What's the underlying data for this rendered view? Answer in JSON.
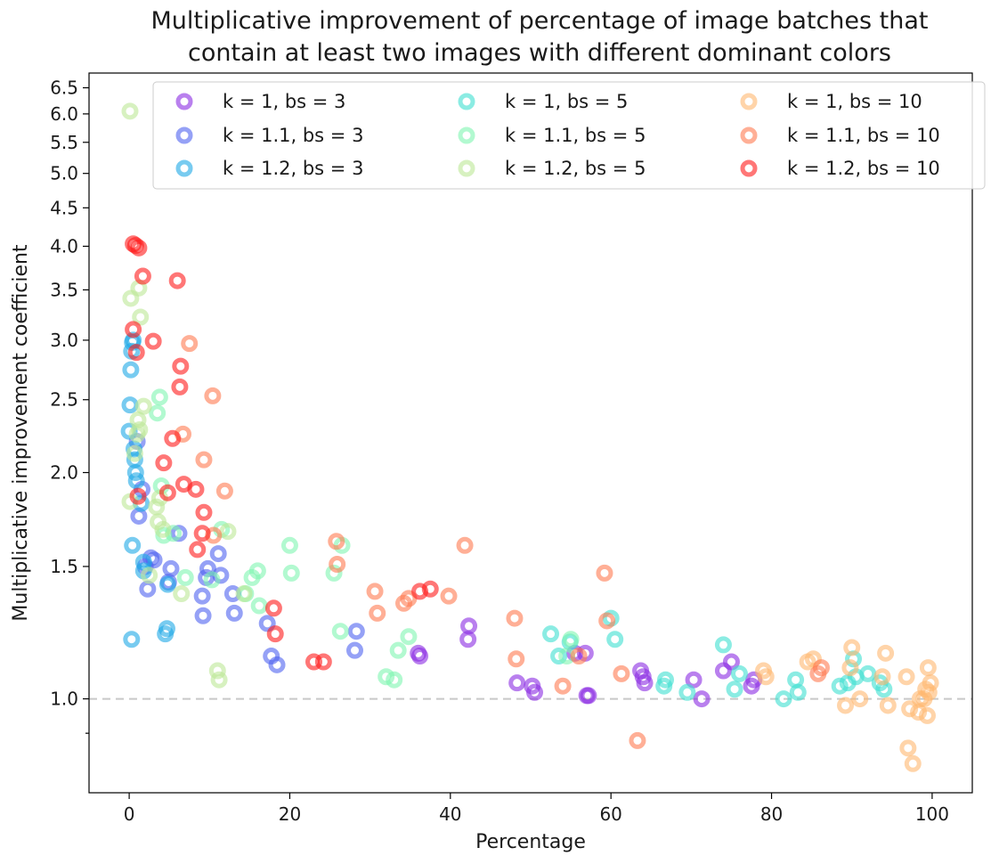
{
  "chart_data": {
    "type": "scatter",
    "title": "Multiplicative improvement of percentage of image batches that contain at least two images with different dominant colors",
    "title_lines": [
      "Multiplicative improvement of percentage of image batches that",
      "contain at least two images with different dominant colors"
    ],
    "xlabel": "Percentage",
    "ylabel": "Multiplicative improvement coefficient",
    "xlim": [
      -5,
      105
    ],
    "ylim": [
      0.75,
      6.8
    ],
    "yscale": "log",
    "x_ticks": [
      0,
      20,
      40,
      60,
      80,
      100
    ],
    "y_ticks": [
      1.0,
      1.5,
      2.0,
      2.5,
      3.0,
      3.5,
      4.0,
      4.5,
      5.0,
      5.5,
      6.0,
      6.5
    ],
    "y_minor_ticks": [
      0.9
    ],
    "reference_line": {
      "y": 1.0,
      "style": "dashed",
      "color": "#c8c8c8"
    },
    "grid": false,
    "legend": {
      "placement": "top",
      "columns": 3
    },
    "series": [
      {
        "name": "k = 1, bs = 3",
        "color": "#8a2be2",
        "points": [
          [
            42.3,
            1.25
          ],
          [
            42.2,
            1.2
          ],
          [
            48.3,
            1.05
          ],
          [
            50.2,
            1.04
          ],
          [
            50.5,
            1.02
          ],
          [
            55.5,
            1.15
          ],
          [
            56.8,
            1.15
          ],
          [
            57.0,
            1.01
          ],
          [
            57.2,
            1.01
          ],
          [
            63.7,
            1.09
          ],
          [
            64.0,
            1.07
          ],
          [
            64.2,
            1.05
          ],
          [
            70.3,
            1.06
          ],
          [
            71.3,
            1.0
          ],
          [
            74.0,
            1.09
          ],
          [
            75.0,
            1.12
          ],
          [
            77.5,
            1.04
          ],
          [
            77.8,
            1.06
          ],
          [
            36.2,
            1.14
          ],
          [
            36.0,
            1.15
          ]
        ]
      },
      {
        "name": "k = 1.1, bs = 3",
        "color": "#4f63f0",
        "points": [
          [
            1.0,
            2.2
          ],
          [
            1.2,
            1.75
          ],
          [
            1.6,
            1.9
          ],
          [
            2.0,
            1.5
          ],
          [
            2.3,
            1.4
          ],
          [
            2.7,
            1.54
          ],
          [
            3.1,
            1.53
          ],
          [
            4.9,
            1.43
          ],
          [
            5.2,
            1.49
          ],
          [
            6.2,
            1.66
          ],
          [
            9.1,
            1.37
          ],
          [
            9.2,
            1.29
          ],
          [
            9.6,
            1.45
          ],
          [
            9.8,
            1.49
          ],
          [
            11.1,
            1.56
          ],
          [
            11.4,
            1.46
          ],
          [
            12.9,
            1.38
          ],
          [
            13.1,
            1.3
          ],
          [
            17.2,
            1.26
          ],
          [
            17.7,
            1.14
          ],
          [
            18.4,
            1.11
          ],
          [
            28.1,
            1.16
          ],
          [
            28.3,
            1.23
          ]
        ]
      },
      {
        "name": "k = 1.2, bs = 3",
        "color": "#1ea8e6",
        "points": [
          [
            0.0,
            2.27
          ],
          [
            0.1,
            2.46
          ],
          [
            0.2,
            2.74
          ],
          [
            0.3,
            2.9
          ],
          [
            0.4,
            2.98
          ],
          [
            0.5,
            3.0
          ],
          [
            0.6,
            2.15
          ],
          [
            0.7,
            2.08
          ],
          [
            0.8,
            2.0
          ],
          [
            0.9,
            1.95
          ],
          [
            0.4,
            1.6
          ],
          [
            0.3,
            1.2
          ],
          [
            1.8,
            1.48
          ],
          [
            4.5,
            1.22
          ],
          [
            4.8,
            1.42
          ],
          [
            4.7,
            1.24
          ],
          [
            1.5,
            1.82
          ],
          [
            1.8,
            1.52
          ]
        ]
      },
      {
        "name": "k = 1, bs = 5",
        "color": "#3de0d0",
        "points": [
          [
            52.5,
            1.22
          ],
          [
            53.5,
            1.14
          ],
          [
            54.9,
            1.19
          ],
          [
            60.0,
            1.28
          ],
          [
            60.5,
            1.2
          ],
          [
            66.6,
            1.04
          ],
          [
            66.8,
            1.06
          ],
          [
            69.5,
            1.02
          ],
          [
            74.0,
            1.18
          ],
          [
            75.4,
            1.03
          ],
          [
            76.0,
            1.08
          ],
          [
            81.5,
            1.0
          ],
          [
            83.0,
            1.06
          ],
          [
            83.3,
            1.02
          ],
          [
            88.5,
            1.04
          ],
          [
            89.5,
            1.05
          ],
          [
            90.2,
            1.13
          ],
          [
            90.5,
            1.07
          ],
          [
            92.0,
            1.08
          ],
          [
            93.5,
            1.05
          ],
          [
            94.0,
            1.03
          ]
        ]
      },
      {
        "name": "k = 1.1, bs = 5",
        "color": "#7ff5b0",
        "points": [
          [
            3.8,
            2.52
          ],
          [
            3.5,
            2.4
          ],
          [
            4.0,
            1.92
          ],
          [
            4.3,
            1.65
          ],
          [
            5.5,
            1.66
          ],
          [
            7.0,
            1.45
          ],
          [
            10.3,
            1.44
          ],
          [
            11.5,
            1.68
          ],
          [
            14.5,
            1.38
          ],
          [
            15.3,
            1.45
          ],
          [
            16.0,
            1.48
          ],
          [
            16.2,
            1.33
          ],
          [
            20.0,
            1.6
          ],
          [
            20.2,
            1.47
          ],
          [
            25.5,
            1.47
          ],
          [
            26.3,
            1.23
          ],
          [
            26.5,
            1.6
          ],
          [
            32.0,
            1.07
          ],
          [
            33.0,
            1.06
          ],
          [
            33.5,
            1.16
          ],
          [
            34.8,
            1.21
          ],
          [
            54.5,
            1.14
          ],
          [
            55.0,
            1.2
          ]
        ]
      },
      {
        "name": "k = 1.2, bs = 5",
        "color": "#bde896",
        "points": [
          [
            0.1,
            6.05
          ],
          [
            0.2,
            3.41
          ],
          [
            0.1,
            1.83
          ],
          [
            1.2,
            3.52
          ],
          [
            1.4,
            3.22
          ],
          [
            1.8,
            2.45
          ],
          [
            1.1,
            2.35
          ],
          [
            1.3,
            2.28
          ],
          [
            1.0,
            2.25
          ],
          [
            0.7,
            2.12
          ],
          [
            2.5,
            1.46
          ],
          [
            3.4,
            1.8
          ],
          [
            3.8,
            1.85
          ],
          [
            3.6,
            1.72
          ],
          [
            4.2,
            1.68
          ],
          [
            6.5,
            1.38
          ],
          [
            12.3,
            1.67
          ],
          [
            11.0,
            1.09
          ],
          [
            11.2,
            1.06
          ],
          [
            14.3,
            1.38
          ]
        ]
      },
      {
        "name": "k = 1, bs = 10",
        "color": "#ffb870",
        "points": [
          [
            79.0,
            1.09
          ],
          [
            79.3,
            1.07
          ],
          [
            84.5,
            1.12
          ],
          [
            85.2,
            1.13
          ],
          [
            89.2,
            0.98
          ],
          [
            89.8,
            1.1
          ],
          [
            90.0,
            1.17
          ],
          [
            91.0,
            1.0
          ],
          [
            93.8,
            1.07
          ],
          [
            94.2,
            1.15
          ],
          [
            94.5,
            0.98
          ],
          [
            96.8,
            1.07
          ],
          [
            97.0,
            0.86
          ],
          [
            97.2,
            0.97
          ],
          [
            97.6,
            0.82
          ],
          [
            98.3,
            0.96
          ],
          [
            99.0,
            1.0
          ],
          [
            99.2,
            1.03
          ],
          [
            99.4,
            0.95
          ],
          [
            99.6,
            1.02
          ],
          [
            99.8,
            1.05
          ],
          [
            99.5,
            1.1
          ],
          [
            98.5,
            1.0
          ]
        ]
      },
      {
        "name": "k = 1.1, bs = 10",
        "color": "#ff7a50",
        "points": [
          [
            7.5,
            2.97
          ],
          [
            6.7,
            2.25
          ],
          [
            9.3,
            2.08
          ],
          [
            10.4,
            2.53
          ],
          [
            10.5,
            1.65
          ],
          [
            11.9,
            1.89
          ],
          [
            25.8,
            1.62
          ],
          [
            25.9,
            1.51
          ],
          [
            30.6,
            1.39
          ],
          [
            30.9,
            1.3
          ],
          [
            34.2,
            1.34
          ],
          [
            34.8,
            1.36
          ],
          [
            39.8,
            1.37
          ],
          [
            41.8,
            1.6
          ],
          [
            48.0,
            1.28
          ],
          [
            48.2,
            1.13
          ],
          [
            54.0,
            1.04
          ],
          [
            56.0,
            1.14
          ],
          [
            59.2,
            1.47
          ],
          [
            59.5,
            1.27
          ],
          [
            61.3,
            1.08
          ],
          [
            63.3,
            0.88
          ],
          [
            85.8,
            1.08
          ],
          [
            86.2,
            1.1
          ]
        ]
      },
      {
        "name": "k = 1.2, bs = 10",
        "color": "#ff1a1a",
        "points": [
          [
            0.5,
            4.03
          ],
          [
            0.8,
            4.01
          ],
          [
            1.2,
            3.98
          ],
          [
            1.7,
            3.65
          ],
          [
            6.0,
            3.6
          ],
          [
            0.5,
            3.1
          ],
          [
            0.9,
            2.89
          ],
          [
            3.0,
            2.99
          ],
          [
            6.4,
            2.77
          ],
          [
            6.3,
            2.6
          ],
          [
            5.4,
            2.22
          ],
          [
            4.3,
            2.06
          ],
          [
            4.8,
            1.88
          ],
          [
            1.1,
            1.86
          ],
          [
            6.8,
            1.93
          ],
          [
            8.3,
            1.9
          ],
          [
            9.3,
            1.77
          ],
          [
            8.5,
            1.58
          ],
          [
            9.1,
            1.66
          ],
          [
            18.0,
            1.32
          ],
          [
            18.2,
            1.22
          ],
          [
            23.0,
            1.12
          ],
          [
            24.2,
            1.12
          ],
          [
            36.2,
            1.39
          ],
          [
            37.5,
            1.4
          ]
        ]
      }
    ]
  }
}
